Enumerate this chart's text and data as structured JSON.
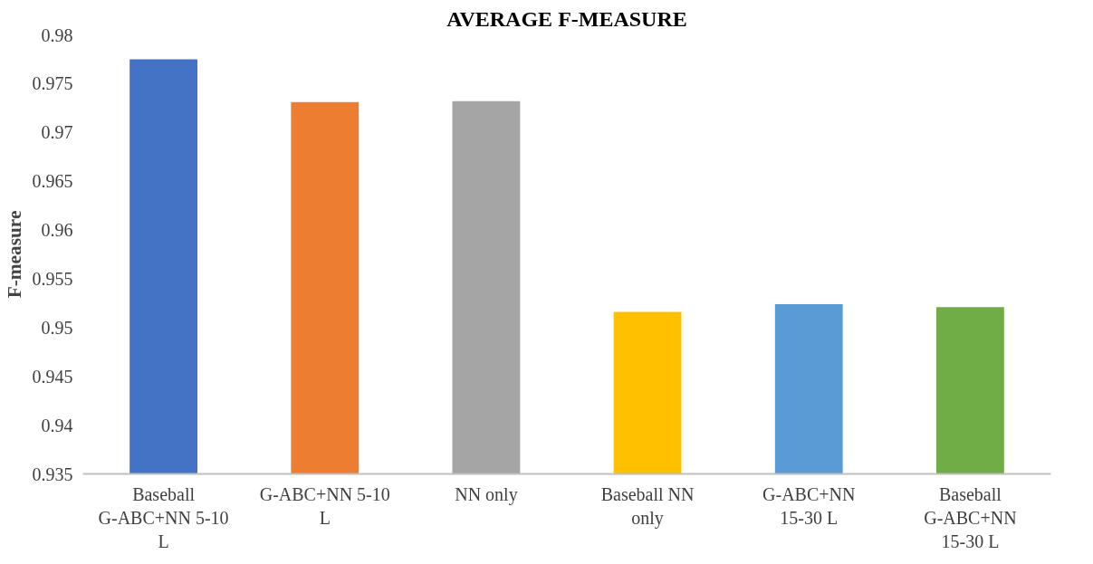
{
  "chart_data": {
    "type": "bar",
    "title": "AVERAGE F-MEASURE",
    "ylabel": "F-measure",
    "categories": [
      "Baseball G-ABC+NN 5-10 L",
      "G-ABC+NN 5-10 L",
      "NN only",
      "Baseball NN only",
      "G-ABC+NN 15-30 L",
      "Baseball G-ABC+NN 15-30 L"
    ],
    "values": [
      0.9775,
      0.9731,
      0.9732,
      0.9516,
      0.9524,
      0.9521
    ],
    "colors": [
      "#4472c4",
      "#ed7d31",
      "#a5a5a5",
      "#ffc000",
      "#5b9bd5",
      "#70ad47"
    ],
    "ylim": [
      0.935,
      0.98
    ],
    "yticks": [
      0.935,
      0.94,
      0.945,
      0.95,
      0.955,
      0.96,
      0.965,
      0.97,
      0.975,
      0.98
    ],
    "grid": false
  }
}
